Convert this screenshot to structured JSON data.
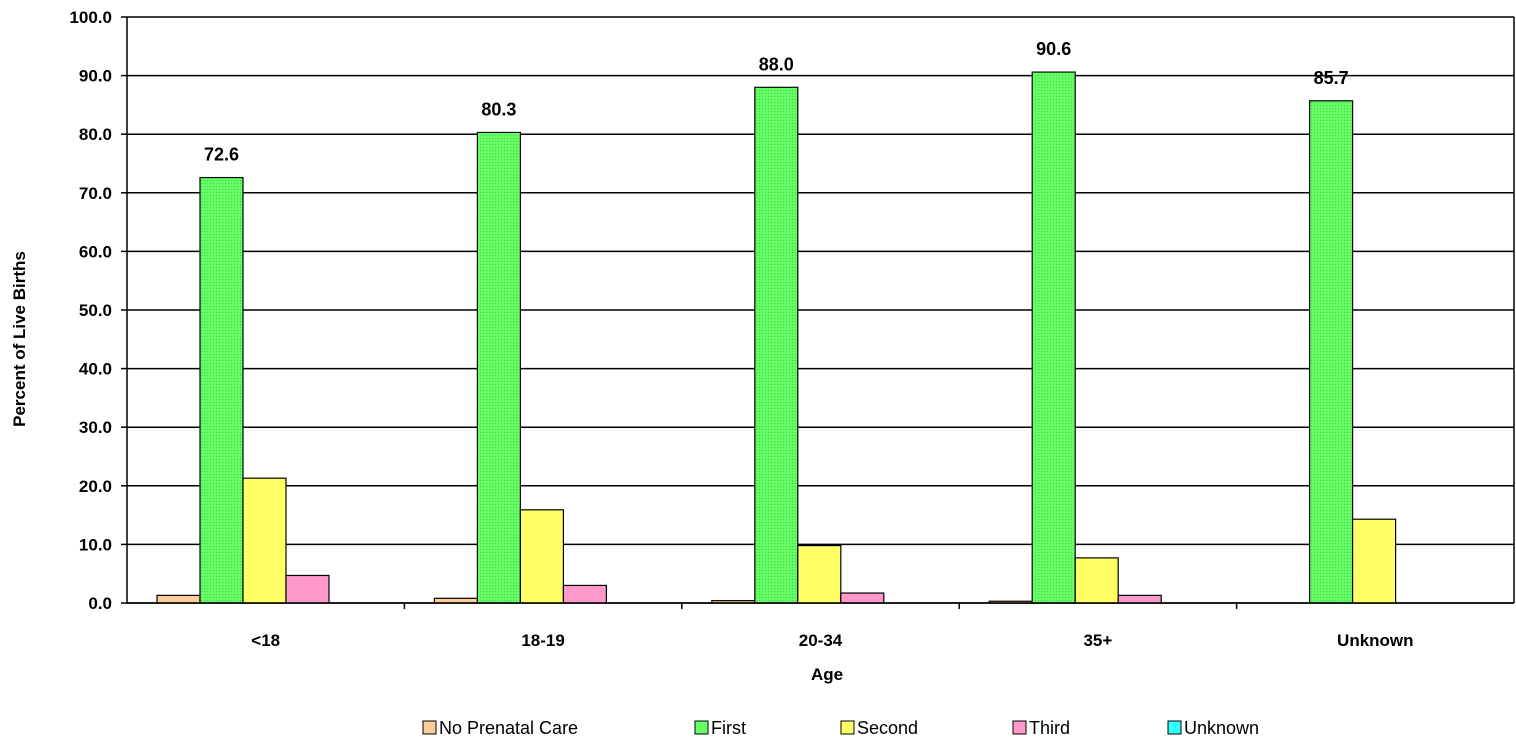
{
  "chart_data": {
    "type": "bar",
    "xlabel": "Age",
    "ylabel": "Percent of Live Births",
    "ylim": [
      0,
      100
    ],
    "yticks": [
      "0.0",
      "10.0",
      "20.0",
      "30.0",
      "40.0",
      "50.0",
      "60.0",
      "70.0",
      "80.0",
      "90.0",
      "100.0"
    ],
    "grid": true,
    "legend_position": "bottom",
    "categories": [
      "<18",
      "18-19",
      "20-34",
      "35+",
      "Unknown"
    ],
    "series": [
      {
        "name": "No Prenatal Care",
        "color": "#FFCC99",
        "values": [
          1.3,
          0.8,
          0.4,
          0.3,
          0
        ]
      },
      {
        "name": "First",
        "color": "#66FF66",
        "values": [
          72.6,
          80.3,
          88.0,
          90.6,
          85.7
        ]
      },
      {
        "name": "Second",
        "color": "#FFFF66",
        "values": [
          21.3,
          15.9,
          9.8,
          7.7,
          14.3
        ]
      },
      {
        "name": "Third",
        "color": "#FF99CC",
        "values": [
          4.7,
          3.0,
          1.7,
          1.3,
          0
        ]
      },
      {
        "name": "Unknown",
        "color": "#33FFFF",
        "values": [
          0,
          0,
          0,
          0,
          0
        ]
      }
    ],
    "data_labels": {
      "series": "First",
      "values": [
        "72.6",
        "80.3",
        "88.0",
        "90.6",
        "85.7"
      ]
    }
  }
}
